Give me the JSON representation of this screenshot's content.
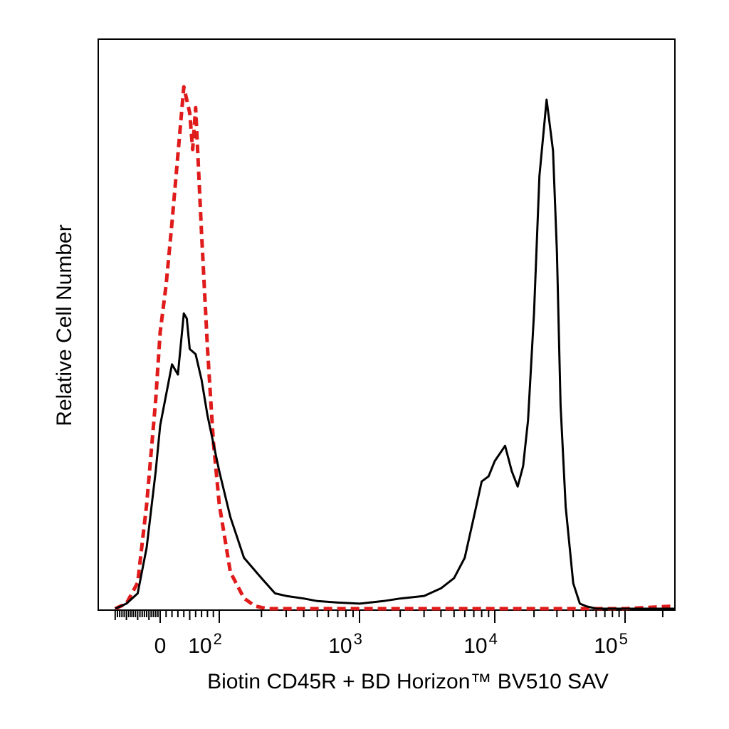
{
  "chart_data": {
    "type": "line",
    "title": "",
    "xlabel": "Biotin CD45R + BD Horizon™ BV510  SAV",
    "ylabel": "Relative Cell Number",
    "x_scale": "biexponential",
    "xlim": [
      -250,
      250000
    ],
    "ylim": [
      0,
      1
    ],
    "grid": false,
    "legend": "none",
    "x_ticks": [
      {
        "value": 0,
        "label": "0"
      },
      {
        "value": 100,
        "base": "10",
        "exp": "2"
      },
      {
        "value": 1000,
        "base": "10",
        "exp": "3"
      },
      {
        "value": 10000,
        "base": "10",
        "exp": "4"
      },
      {
        "value": 100000,
        "base": "10",
        "exp": "5"
      }
    ],
    "series": [
      {
        "color": "#e01b1b",
        "dash": true,
        "x": [
          -200,
          -150,
          -100,
          -60,
          -20,
          0,
          10,
          20,
          30,
          40,
          50,
          55,
          60,
          70,
          80,
          90,
          100,
          120,
          150,
          180,
          220,
          300,
          500,
          1000,
          3000,
          10000,
          100000,
          250000
        ],
        "y": [
          0.0,
          0.01,
          0.05,
          0.2,
          0.4,
          0.53,
          0.62,
          0.74,
          0.87,
          1.0,
          0.95,
          0.88,
          0.96,
          0.72,
          0.5,
          0.32,
          0.2,
          0.07,
          0.02,
          0.005,
          0.0,
          0.0,
          0.0,
          0.0,
          0.0,
          0.0,
          0.0,
          0.005
        ]
      },
      {
        "color": "#000000",
        "dash": false,
        "x": [
          -200,
          -150,
          -100,
          -60,
          -20,
          0,
          10,
          20,
          30,
          40,
          45,
          50,
          60,
          70,
          80,
          100,
          120,
          150,
          200,
          250,
          300,
          400,
          500,
          700,
          1000,
          1500,
          2000,
          3000,
          4000,
          5000,
          6000,
          7000,
          8000,
          9000,
          10000,
          12000,
          13500,
          15000,
          16500,
          18000,
          20000,
          22000,
          25000,
          28000,
          30000,
          32000,
          35000,
          40000,
          45000,
          50000,
          60000,
          80000,
          100000,
          250000
        ],
        "y": [
          0.0,
          0.01,
          0.03,
          0.12,
          0.27,
          0.36,
          0.42,
          0.48,
          0.46,
          0.58,
          0.57,
          0.51,
          0.5,
          0.45,
          0.38,
          0.27,
          0.18,
          0.1,
          0.06,
          0.03,
          0.025,
          0.02,
          0.015,
          0.012,
          0.01,
          0.015,
          0.02,
          0.025,
          0.04,
          0.06,
          0.1,
          0.18,
          0.25,
          0.26,
          0.29,
          0.32,
          0.27,
          0.24,
          0.28,
          0.37,
          0.58,
          0.85,
          1.0,
          0.9,
          0.7,
          0.4,
          0.2,
          0.05,
          0.01,
          0.005,
          0.0,
          0.0,
          0.0,
          0.0
        ]
      }
    ]
  }
}
